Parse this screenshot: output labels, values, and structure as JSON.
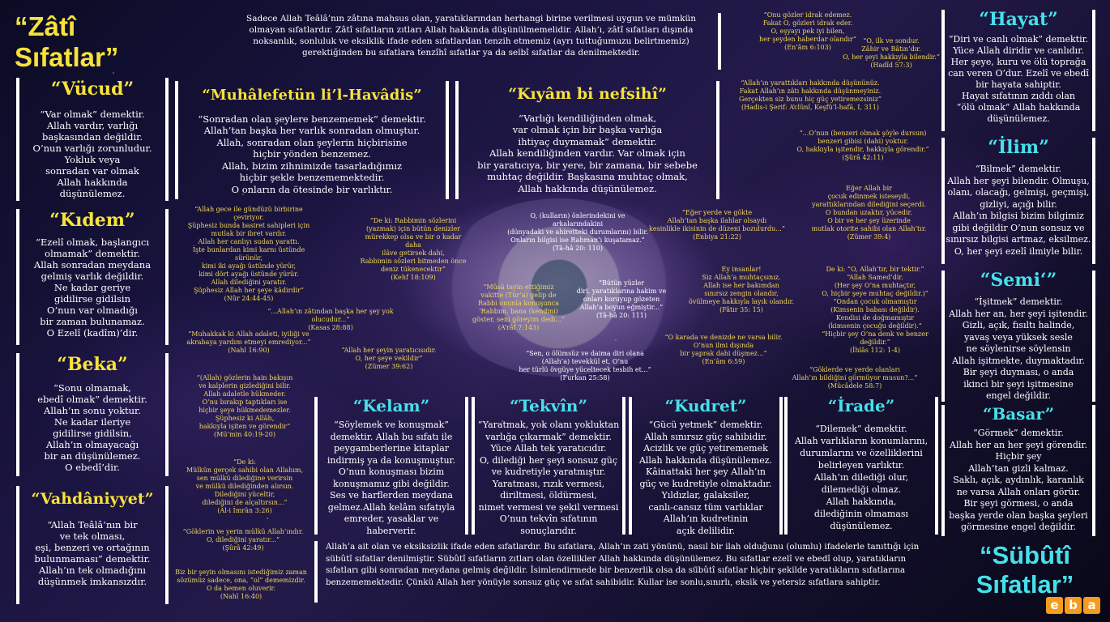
{
  "zati": {
    "title": "“Zâtî\nSıfatlar”"
  },
  "intro": "Sadece Allah Teâlâ’nın zâtına mahsus olan, yaratıklarından herhangi birine verilmesi uygun ve mümkün olmayan sıfatlardır. Zâtî sıfatların zıtları Allah hakkında düşünülmemelidir. Allah’ı, zâtî sıfatları dışında noksanlık, sonluluk ve eksiklik ifade eden sıfatlardan tenzih etmemiz (ayrı tuttuğumuzu belirtmemiz) gerektiğinden bu sıfatlara tenzîhî sıfatlar ya da selbî sıfatlar da denilmektedir.",
  "vucud": {
    "title": "“Vücud”",
    "text": "“Var olmak” demektir.\nAllah vardır, varlığı\nbaşkasından değildir.\nO’nun varlığı zorunludur.\nYokluk veya\nsonradan var olmak\nAllah hakkında\ndüşünülemez."
  },
  "kidem": {
    "title": "“Kıdem”",
    "text": "“Ezelî olmak, başlangıcı\nolmamak” demektir.\nAllah sonradan meydana\ngelmiş varlık değildir.\nNe kadar geriye\ngidilirse gidilsin\nO’nun var olmadığı\nbir zaman bulunamaz.\nO Ezelî (kadîm)’dir."
  },
  "beka": {
    "title": "“Beka”",
    "text": "“Sonu olmamak,\nebedî olmak” demektir.\nAllah’ın sonu yoktur.\nNe kadar ileriye\ngidilirse gidilsin,\nAllah’ın olmayacağı\nbir an düşünülemez.\nO ebedî’dir."
  },
  "vahdaniyyet": {
    "title": "“Vahdâniyyet”",
    "text": "“Allah Teâlâ’nın bir\nve tek olması,\neşi, benzeri ve ortağının\nbulunmaması” demektir.\nAllah’ın tek olmadığını\ndüşünmek imkansızdır."
  },
  "muhalefet": {
    "title": "“Muhâlefetün li’l-Havâdis”",
    "text": "“Sonradan olan şeylere benzememek” demektir.\nAllah’tan başka her varlık sonradan olmuştur.\nAllah, sonradan olan şeylerin hiçbirisine\nhiçbir yönden benzemez.\nAllah, bizim zihnimizde tasarladığımız\nhiçbir şekle benzememektedir.\nO onların da ötesinde bir varlıktır."
  },
  "kiyam": {
    "title": "“Kıyâm bi nefsihî”",
    "text": "“Varlığı kendiliğinden olmak,\nvar olmak için bir başka varlığa\nihtiyaç duymamak” demektir.\nAllah kendiliğinden vardır. Var olmak için\nbir yaratıcıya, bir yere, bir zamana, bir sebebe\nmuhtaç değildir. Başkasına muhtaç olmak,\nAllah hakkında düşünülemez."
  },
  "hayat": {
    "title": "“Hayat”",
    "text": "“Diri ve canlı olmak” demektir.\nYüce Allah diridir ve canlıdır.\nHer şeye, kuru ve ölü toprağa\ncan veren O’dur. Ezelî ve ebedî\nbir hayata sahiptir.\nHayat sıfatının zıddı olan\n“ölü olmak” Allah hakkında\ndüşünülemez."
  },
  "ilim": {
    "title": "“İlim”",
    "text": "“Bilmek” demektir.\nAllah her şeyi bilendir. Olmuşu,\nolanı, olacağı, gelmişi, geçmişi,\ngizliyi, açığı bilir.\nAllah’ın bilgisi bizim bilgimiz\ngibi değildir O’nun sonsuz ve\nsınırsız bilgisi artmaz, eksilmez.\nO, her şeyi ezelî ilmiyle bilir."
  },
  "semi": {
    "title": "“Semi‘”",
    "text": "“İşitmek” demektir.\nAllah her an, her şeyi işitendir.\nGizli, açık, fısıltı halinde,\nyavaş veya yüksek sesle\nne söylenirse söylensin\nAllah işitmekte, duymaktadır.\nBir şeyi duyması, o anda\nikinci bir şeyi işitmesine\nengel değildir."
  },
  "basar": {
    "title": "“Basar”",
    "text": "“Görmek” demektir.\nAllah her an her şeyi görendir.\nHiçbir şey\nAllah’tan gizli kalmaz.\nSaklı, açık, aydınlık, karanlık\nne varsa Allah onları görür.\nBir şeyi görmesi, o anda\nbaşka yerde olan başka şeyleri\ngörmesine engel değildir."
  },
  "kelam": {
    "title": "“Kelam”",
    "text": "“Söylemek ve konuşmak”\ndemektir. Allah bu sıfatı ile\npeygamberlerine kitaplar\nindirmiş ya da konuşmuştur.\nO’nun konuşması bizim\nkonuşmamız gibi değildir.\nSes ve harflerden meydana\ngelmez.Allah kelâm sıfatıyla\nemreder, yasaklar ve\nhaberverir."
  },
  "tekvin": {
    "title": "“Tekvîn”",
    "text": "“Yaratmak, yok olanı yokluktan\nvarlığa çıkarmak” demektir.\nYüce Allah tek yaratıcıdır.\nO, dilediği her şeyi sonsuz güç\nve kudretiyle yaratmıştır.\nYaratması, rızık vermesi,\ndiriltmesi, öldürmesi,\nnimet vermesi ve şekil vermesi\nO’nun tekvîn sıfatının\nsonuçlarıdır."
  },
  "kudret": {
    "title": "“Kudret”",
    "text": "“Gücü yetmek” demektir.\nAllah sınırsız güç sahibidir.\nAcizlik ve güç yetirememek\nAllah hakkında düşünülemez.\nKâinattaki her şey Allah’ın\ngüç ve kudretiyle olmaktadır.\nYıldızlar, galaksiler,\ncanlı-cansız tüm varlıklar\nAllah’ın kudretinin\naçık delilidir."
  },
  "irade": {
    "title": "“İrade”",
    "text": "“Dilemek” demektir.\nAllah varlıkların konumlarını,\ndurumlarını ve özelliklerini\nbelirleyen varlıktır.\nAllah’ın dilediği olur,\ndilemediği olmaz.\nAllah hakkında,\ndilediğinin olmaması\ndüşünülemez."
  },
  "subuti": {
    "title": "“Sübûtî\nSıfatlar”",
    "text": "Allah’a ait olan ve eksiksizlik ifade eden sıfatlardır. Bu sıfatlara, Allah’ın zati yönünü, nasıl bir ilah olduğunu (olumlu) ifadelerle tanıttığı için sübûtî sıfatlar denilmiştir. Sübûtî sıfatların zıtları olan özellikler Allah hakkında düşünülemez. Bu sıfatlar ezelî ve ebedî olup, yaratıkların sıfatları gibi sonradan meydana gelmiş değildir. İsimlendirmede bir benzerlik olsa da sübûtî sıfatlar hiçbir şekilde yaratıkların sıfatlarına benzememektedir. Çünkü Allah her yönüyle sonsuz güç ve sıfat sahibidir. Kullar ise sonlu,sınırlı, eksik ve yetersiz sıfatlara sahiptir."
  },
  "quotes": {
    "q1": "“Onu gözler idrak edemez.\nFakat O, gözleri idrak eder.\nO, eşyayı pek iyi bilen,\nher şeyden haberdar olandır”\n(En’âm 6:103)",
    "q2": "“O, ilk ve sondur.\nZâhir ve Bâtın’dır.\nO, her şeyi hakkıyla bilendir.”\n(Hadîd 57:3)",
    "q3": "“Allah’ın yarattıkları hakkında düşününüz.\nFakat Allah’ın zâtı hakkında düşünmeyiniz.\nGerçekten siz bunu hiç güç yetiremezsiniz”\n(Hadis-i Şerif: Aclûnî, Keşfü’l-hafâ, I, 311)",
    "q4": "“...O’nun (benzeri olmak şöyle dursun)\nbenzeri gibisi (dahi) yoktur.\nO, hakkıyla işitendir, hakkıyla görendir.”\n(Şûrâ 42:11)",
    "q5": "Eğer Allah bir\nçocuk edinmek isteseydi,\nyarattıklarından dilediğini seçerdi.\nO bundan uzaktır, yücedir.\nO bir ve her şey üzerinde\nmutlak otorite sahibi olan Allah’tır.\n(Zümer 39:4)",
    "q6": "“Allah gece ile gündüzü birbirine çeviriyor.\nŞüphesiz bunda basiret sahipleri için\nmutlak bir ibret vardır.\nAllah her canlıyı sudan yarattı.\nİşte bunlardan kimi karnı üstünde sürünür,\nkimi iki ayağı üstünde yürür,\nkimi dört ayağı üstünde yürür.\nAllah dilediğini yaratır.\nŞüphesiz Allah her şeye kâdirdir”\n(Nûr 24:44-45)",
    "q7": "“De ki: Rabbimin sözlerini\n(yazmak) için bütün denizler\nmürekkep olsa ve bir o kadar daha\nilâve getirsek dahi,\nRabbimin sözleri bitmeden önce\ndeniz tükenecektir”\n(Kehf 18:109)",
    "q8": "O, (kulların) önlerindekini ve\narkalarındakini\n(dünyadaki ve ahiretteki durumlarını) bilir.\nOnların bilgisi ise Rahman’ı kuşatamaz.”\n(Tâ-hâ 20: 110)",
    "q9": "“Eğer yerde ve gökte\nAllah’tan başka ilahlar olsaydı\nkesinlikle ikisinin de düzeni bozulurdu...”\n(Enbiya 21:22)",
    "q10": "“...Allah’ın zâtından başka her şey yok olucudur...”\n(Kasas 28:88)",
    "q11": "“Muhakkak ki Allah adaleti, iyiliği ve\nakrabaya yardım etmeyi emrediyor...”\n(Nahl 16:90)",
    "q12": "“Allah her şeyin yaratıcısıdır.\nO, her şeye vekildir”\n(Zümer 39:62)",
    "q13": "“Mûsâ tayin ettiğimiz\nvakitte (Tûr’a) gelip de\nRabbi onunla konuşunca\n‘Rabbim, bana (kendini)\ngöster, seni göreyim dedi...”\n(A’râf 7:143)",
    "q14": "“Bütün yüzler\ndiri, yaratıklarına hakim ve\nonları koruyup gözeten\nAllah’a boyun eğmiştir...”\n(Tâ-hâ 20: 111)",
    "q15": "Ey insanlar!\nSiz Allah’a muhtaçsınız.\nAllah ise her bakımdan\nsınırsız zengin olandır,\növülmeye hakkıyla layık olandır.\n(Fâtır 35: 15)",
    "q16": "De ki: “O, Allah’tır, bir tektir.”\n“Allah Samed’dir.\n(Her şey O’na muhtaçtır,\nO, hiçbir şeye muhtaç değildir.)”\n“Ondan çocuk olmamıştır\n(Kimsenin babası değildir).\nKendisi de doğmamıştır\n(kimsenin çocuğu değildir).”\n“Hiçbir şey O’na denk ve benzer değildir.”\n(İhlâs 112: 1-4)",
    "q17": "“(Allah) gözlerin hain bakışın\nve kalplerin gizlediğini bilir.\nAllah adaletle hükmeder.\nO’nu bırakıp taptıkları ise\nhiçbir şeye hükmedemezler.\nŞüphesiz ki Allâh,\nhakkıyla işiten ve görendir”\n(Mü’min 40:19-20)",
    "q18": "“Sen, o ölümsüz ve daima diri olana\n(Allah’a) tevekkül et, O’nu\nher türlü övgüye yüceltecek tesbih et...”\n(Furkan 25:58)",
    "q19": "“O karada ve denizde ne varsa bilir.\nO’nun ilmi dışında\nbir yaprak dahi düşmez...”\n(En’âm 6:59)",
    "q20": "“Göklerde ve yerde olanları\nAllah’ın bildiğini görmüyor musun?...”\n(Mücâdele 58:7)",
    "q21": "“De ki:\nMülkün gerçek sahibi olan Allahım,\nsen mülkü dilediğine verirsin\nve mülkü dilediğinden alırsın.\nDilediğini yüceltir,\ndilediğini de alçaltırsın...”\n(Âl-i İmrân 3:26)",
    "q22": "“Göklerin ve yerin mülkü Allah’ındır.\nO, dilediğini yaratır...”\n(Şûrâ 42:49)",
    "q23": "Biz bir şeyin olmasını istediğimiz zaman\nsözümüz sadece, ona, “ol” dememizdir.\nO da hemen oluverir.\n(Nahl 16:40)"
  },
  "logo": "eba"
}
